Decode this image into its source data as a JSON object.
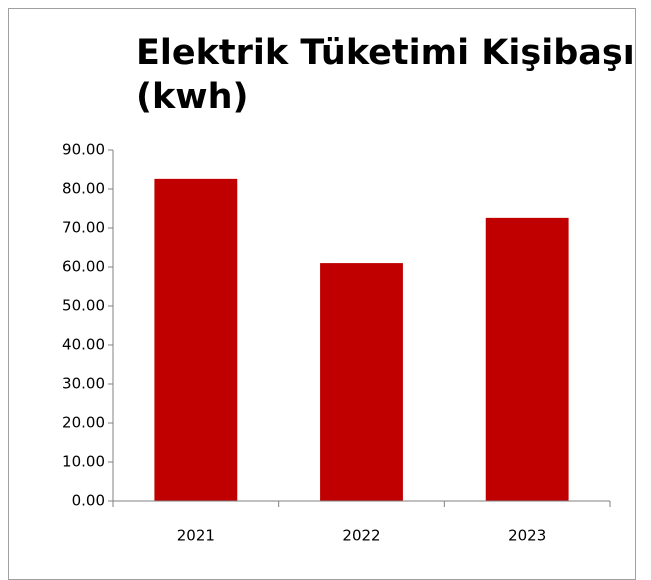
{
  "chart_data": {
    "type": "bar",
    "title": "Elektrik Tüketimi Kişibaşı (kwh)",
    "categories": [
      "2021",
      "2022",
      "2023"
    ],
    "values": [
      82.6,
      61.0,
      72.6
    ],
    "color": "#c00000",
    "ylim": [
      0,
      90
    ],
    "yticks": [
      {
        "value": 0,
        "label": "0.00"
      },
      {
        "value": 10,
        "label": "10.00"
      },
      {
        "value": 20,
        "label": "20.00"
      },
      {
        "value": 30,
        "label": "30.00"
      },
      {
        "value": 40,
        "label": "40.00"
      },
      {
        "value": 50,
        "label": "50.00"
      },
      {
        "value": 60,
        "label": "60.00"
      },
      {
        "value": 70,
        "label": "70.00"
      },
      {
        "value": 80,
        "label": "80.00"
      },
      {
        "value": 90,
        "label": "90.00"
      }
    ],
    "grid": false
  }
}
